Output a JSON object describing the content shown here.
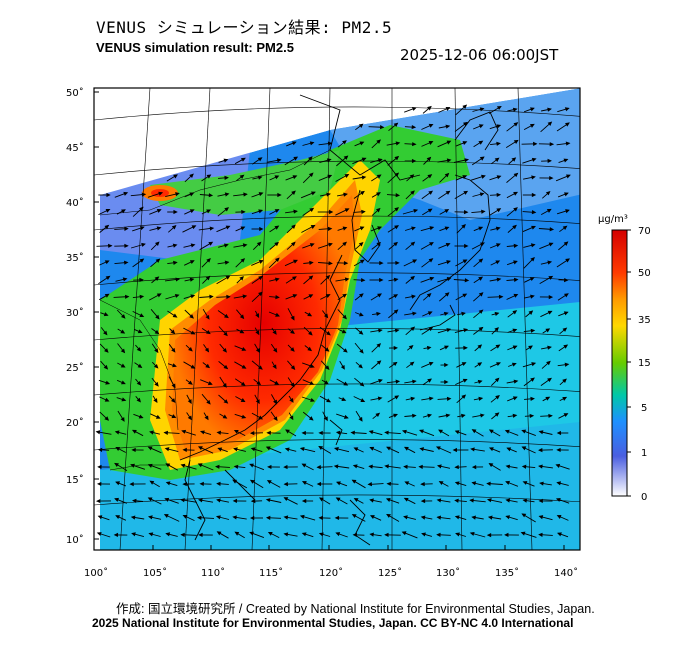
{
  "title_ja": "VENUS シミュレーション結果: PM2.5",
  "title_en": "VENUS simulation result: PM2.5",
  "timestamp": "2025-12-06 06:00JST",
  "credit_line1": "作成: 国立環境研究所 / Created by National Institute for Environmental Studies, Japan.",
  "credit_line2": "2025 National Institute for Environmental Studies, Japan. CC BY-NC 4.0 International",
  "map": {
    "lat_ticks": [
      "50˚",
      "45˚",
      "40˚",
      "35˚",
      "30˚",
      "25˚",
      "20˚",
      "15˚",
      "10˚"
    ],
    "lon_ticks": [
      "100˚",
      "105˚",
      "110˚",
      "115˚",
      "120˚",
      "125˚",
      "130˚",
      "135˚",
      "140˚"
    ],
    "lat_range": [
      10,
      50
    ],
    "lon_range": [
      100,
      140
    ]
  },
  "colorbar": {
    "unit": "µg/m³",
    "labels": [
      "70",
      "50",
      "35",
      "15",
      "5",
      "1",
      "0"
    ],
    "colors": [
      "#ff0000",
      "#ff8c00",
      "#ffd700",
      "#8fd400",
      "#00c8a0",
      "#1e90ff",
      "#5a6ee6",
      "#ffffff"
    ]
  }
}
